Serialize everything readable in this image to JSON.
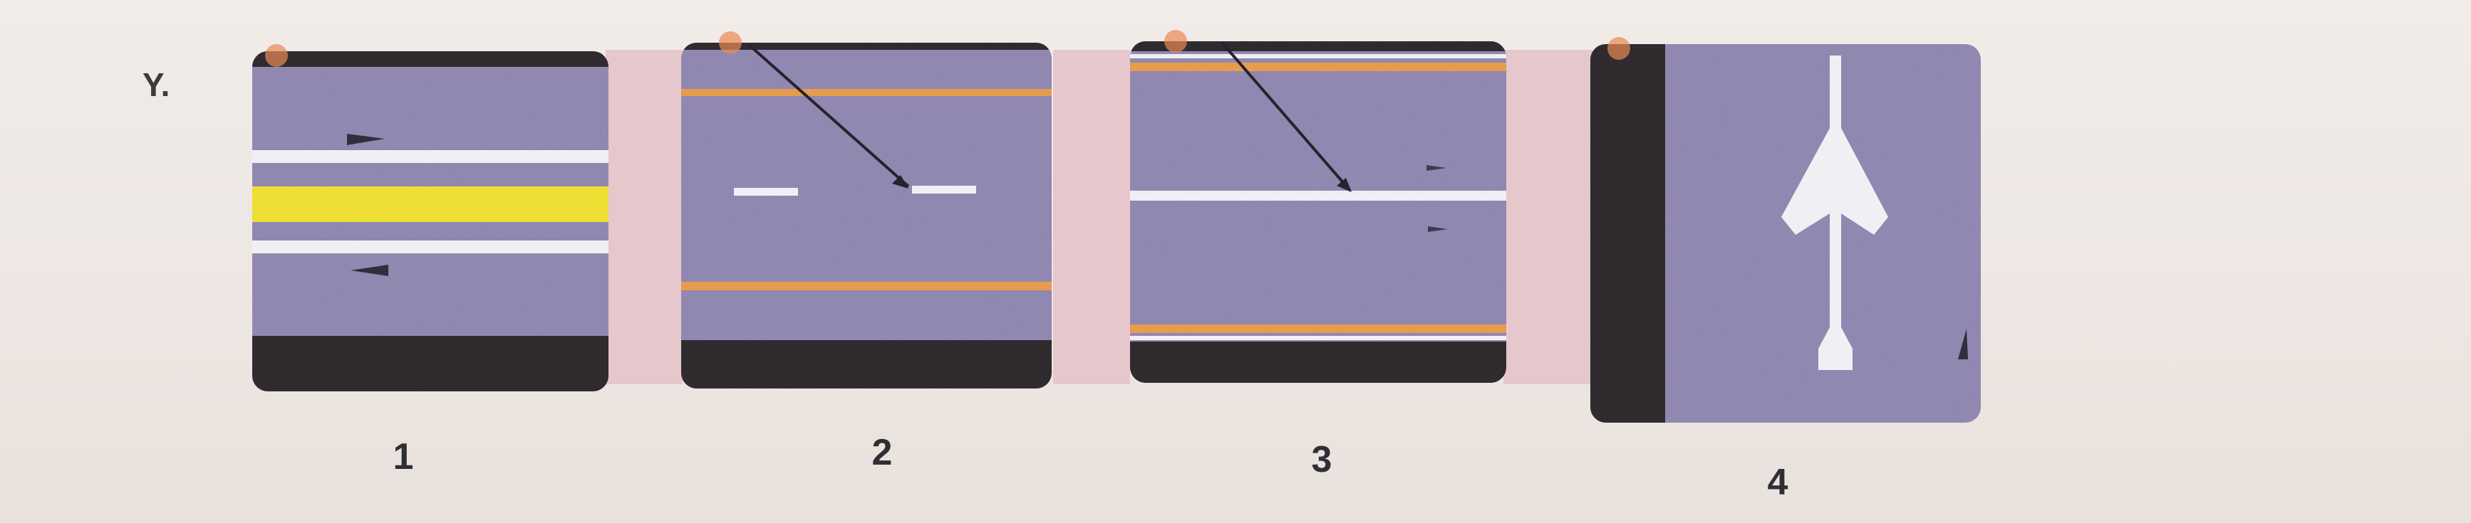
{
  "question": {
    "label": "Y."
  },
  "panels": [
    {
      "number": "1"
    },
    {
      "number": "2"
    },
    {
      "number": "3"
    },
    {
      "number": "4"
    }
  ],
  "colors": {
    "road": "#8f86b0",
    "road_dark": "#7f77a2",
    "curb": "#2a2528",
    "white_line": "#f4f1f6",
    "yellow_line": "#f1df2e",
    "orange_line": "#e99a4a",
    "gap_pink": "#e6c7cc"
  }
}
